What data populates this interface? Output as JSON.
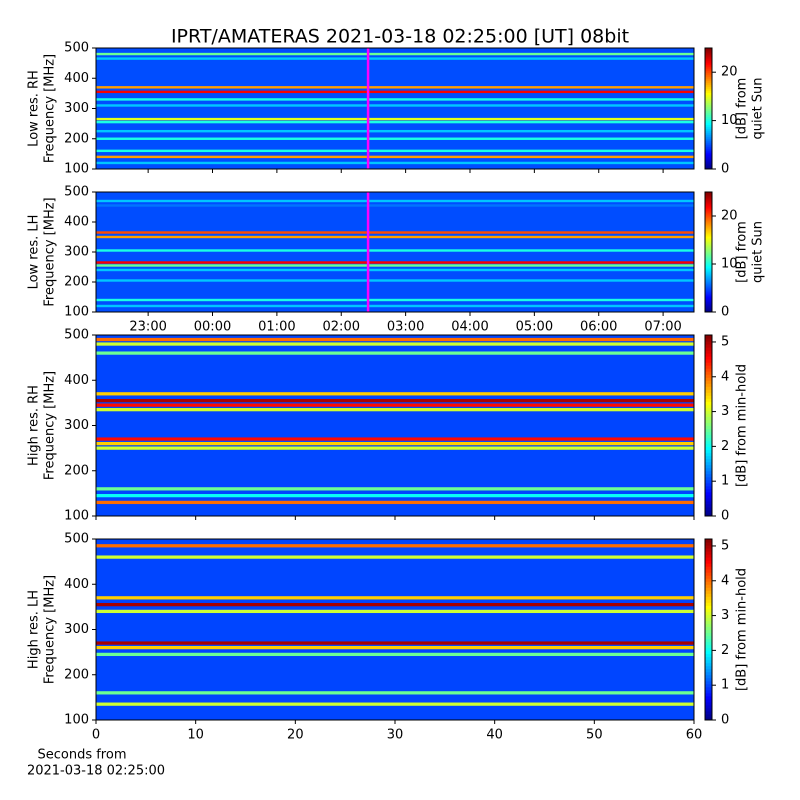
{
  "chart_data": [
    {
      "type": "spectrogram",
      "title": "IPRT/AMATERAS 2021-03-18 02:25:00 [UT]   08bit",
      "ylabel": [
        "Low res. RH",
        "Frequency [MHz]"
      ],
      "colorbar_label": [
        "[dB] from",
        "quiet Sun"
      ],
      "xlim": [
        22.19,
        31.48
      ],
      "ylim": [
        100,
        500
      ],
      "yticks": [
        100,
        200,
        300,
        400,
        500
      ],
      "clim": [
        0,
        25
      ],
      "cticks": [
        0,
        10,
        20
      ],
      "background_level": 5,
      "y": [
        480,
        465,
        370,
        355,
        330,
        310,
        265,
        255,
        225,
        200,
        160,
        140,
        120
      ],
      "values": [
        12,
        8,
        18,
        22,
        10,
        8,
        15,
        10,
        8,
        10,
        10,
        18,
        8
      ],
      "marker_x": 26.4167,
      "marker_color": "#ff00ff"
    },
    {
      "type": "spectrogram",
      "ylabel": [
        "Low res. LH",
        "Frequency [MHz]"
      ],
      "colorbar_label": [
        "[dB] from",
        "quiet Sun"
      ],
      "xlim": [
        22.19,
        31.48
      ],
      "ylim": [
        100,
        500
      ],
      "yticks": [
        100,
        200,
        300,
        400,
        500
      ],
      "xticks": [
        {
          "value": 23,
          "label": "23:00"
        },
        {
          "value": 24,
          "label": "00:00"
        },
        {
          "value": 25,
          "label": "01:00"
        },
        {
          "value": 26,
          "label": "02:00"
        },
        {
          "value": 27,
          "label": "03:00"
        },
        {
          "value": 28,
          "label": "04:00"
        },
        {
          "value": 29,
          "label": "05:00"
        },
        {
          "value": 30,
          "label": "06:00"
        },
        {
          "value": 31,
          "label": "07:00"
        }
      ],
      "clim": [
        0,
        25
      ],
      "cticks": [
        0,
        10,
        20
      ],
      "background_level": 5,
      "y": [
        470,
        455,
        365,
        350,
        305,
        265,
        255,
        240,
        205,
        140,
        120
      ],
      "values": [
        8,
        6,
        20,
        18,
        10,
        22,
        12,
        8,
        8,
        10,
        8
      ],
      "marker_x": 26.4167,
      "marker_color": "#ff00ff"
    },
    {
      "type": "spectrogram",
      "ylabel": [
        "High res. RH",
        "Frequency [MHz]"
      ],
      "colorbar_label": [
        "[dB] from min-hold"
      ],
      "xlim": [
        0,
        60
      ],
      "ylim": [
        100,
        500
      ],
      "yticks": [
        100,
        200,
        300,
        400,
        500
      ],
      "clim": [
        0,
        5.2
      ],
      "cticks": [
        0,
        1,
        2,
        3,
        4,
        5
      ],
      "background_level": 1,
      "y": [
        490,
        480,
        460,
        370,
        355,
        345,
        335,
        270,
        260,
        250,
        160,
        145,
        130
      ],
      "values": [
        4,
        3,
        2.5,
        3.5,
        5,
        4.5,
        3,
        4.5,
        3.5,
        3,
        2.5,
        2,
        4
      ]
    },
    {
      "type": "spectrogram",
      "ylabel": [
        "High res. LH",
        "Frequency [MHz]"
      ],
      "colorbar_label": [
        "[dB] from min-hold"
      ],
      "xlabel": [
        "Seconds from",
        "2021-03-18 02:25:00"
      ],
      "xlim": [
        0,
        60
      ],
      "ylim": [
        100,
        500
      ],
      "yticks": [
        100,
        200,
        300,
        400,
        500
      ],
      "xticks": [
        0,
        10,
        20,
        30,
        40,
        50,
        60
      ],
      "clim": [
        0,
        5.2
      ],
      "cticks": [
        0,
        1,
        2,
        3,
        4,
        5
      ],
      "background_level": 1,
      "y": [
        485,
        460,
        370,
        355,
        340,
        270,
        260,
        245,
        160,
        135
      ],
      "values": [
        4,
        3,
        3.5,
        5,
        3,
        5,
        3.5,
        2.5,
        2.5,
        3
      ]
    }
  ]
}
